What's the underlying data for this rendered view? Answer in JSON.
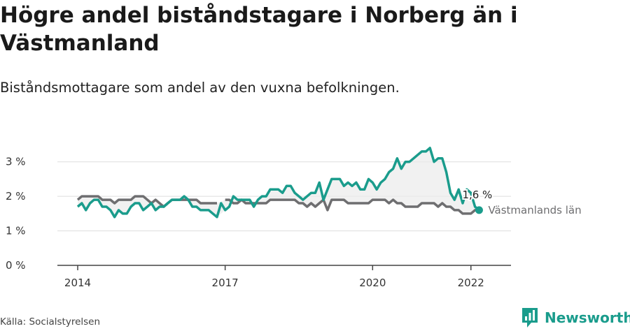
{
  "title": "Högre andel biståndstagare i Norberg än i Västmanland",
  "subtitle": "Biståndsmottagare som andel av den vuxna befolkningen.",
  "source": "Källa: Socialstyrelsen",
  "brand": {
    "name": "Newsworthy",
    "icon": "newsworthy-logo-icon"
  },
  "colors": {
    "primary": "#1a9c8c",
    "comparison": "#6e6e70",
    "fill": "#ebebeb",
    "grid": "#dddddd"
  },
  "chart_data": {
    "type": "line",
    "title": "Högre andel biståndstagare i Norberg än i Västmanland",
    "subtitle": "Biståndsmottagare som andel av den vuxna befolkningen.",
    "xlabel": "",
    "ylabel": "",
    "x_range": [
      "2014-01",
      "2022-06"
    ],
    "ylim": [
      0,
      3.5
    ],
    "x_ticks": [
      {
        "label": "2014",
        "value": "2014-01"
      },
      {
        "label": "2017",
        "value": "2017-01"
      },
      {
        "label": "2020",
        "value": "2020-01"
      },
      {
        "label": "2022",
        "value": "2022-01"
      }
    ],
    "y_ticks": [
      {
        "label": "0 %",
        "value": 0
      },
      {
        "label": "1 %",
        "value": 1
      },
      {
        "label": "2 %",
        "value": 2
      },
      {
        "label": "3 %",
        "value": 3
      }
    ],
    "grid": true,
    "series": [
      {
        "name": "",
        "role": "primary",
        "color": "#1a9c8c",
        "points": [
          [
            "2014-01",
            1.7
          ],
          [
            "2014-02",
            1.8
          ],
          [
            "2014-03",
            1.6
          ],
          [
            "2014-04",
            1.8
          ],
          [
            "2014-05",
            1.9
          ],
          [
            "2014-06",
            1.9
          ],
          [
            "2014-07",
            1.7
          ],
          [
            "2014-08",
            1.7
          ],
          [
            "2014-09",
            1.6
          ],
          [
            "2014-10",
            1.4
          ],
          [
            "2014-11",
            1.6
          ],
          [
            "2014-12",
            1.5
          ],
          [
            "2015-01",
            1.5
          ],
          [
            "2015-02",
            1.7
          ],
          [
            "2015-03",
            1.8
          ],
          [
            "2015-04",
            1.8
          ],
          [
            "2015-05",
            1.6
          ],
          [
            "2015-06",
            1.7
          ],
          [
            "2015-07",
            1.8
          ],
          [
            "2015-08",
            1.6
          ],
          [
            "2015-09",
            1.7
          ],
          [
            "2015-10",
            1.7
          ],
          [
            "2015-11",
            1.8
          ],
          [
            "2015-12",
            1.9
          ],
          [
            "2016-01",
            1.9
          ],
          [
            "2016-02",
            1.9
          ],
          [
            "2016-03",
            2.0
          ],
          [
            "2016-04",
            1.9
          ],
          [
            "2016-05",
            1.7
          ],
          [
            "2016-06",
            1.7
          ],
          [
            "2016-07",
            1.6
          ],
          [
            "2016-08",
            1.6
          ],
          [
            "2016-09",
            1.6
          ],
          [
            "2016-10",
            1.5
          ],
          [
            "2016-11",
            1.4
          ],
          [
            "2016-12",
            1.8
          ],
          [
            "2017-01",
            1.6
          ],
          [
            "2017-02",
            1.7
          ],
          [
            "2017-03",
            2.0
          ],
          [
            "2017-04",
            1.9
          ],
          [
            "2017-05",
            1.9
          ],
          [
            "2017-06",
            1.9
          ],
          [
            "2017-07",
            1.9
          ],
          [
            "2017-08",
            1.7
          ],
          [
            "2017-09",
            1.9
          ],
          [
            "2017-10",
            2.0
          ],
          [
            "2017-11",
            2.0
          ],
          [
            "2017-12",
            2.2
          ],
          [
            "2018-01",
            2.2
          ],
          [
            "2018-02",
            2.2
          ],
          [
            "2018-03",
            2.1
          ],
          [
            "2018-04",
            2.3
          ],
          [
            "2018-05",
            2.3
          ],
          [
            "2018-06",
            2.1
          ],
          [
            "2018-07",
            2.0
          ],
          [
            "2018-08",
            1.9
          ],
          [
            "2018-09",
            2.0
          ],
          [
            "2018-10",
            2.1
          ],
          [
            "2018-11",
            2.1
          ],
          [
            "2018-12",
            2.4
          ],
          [
            "2019-01",
            1.9
          ],
          [
            "2019-02",
            2.2
          ],
          [
            "2019-03",
            2.5
          ],
          [
            "2019-04",
            2.5
          ],
          [
            "2019-05",
            2.5
          ],
          [
            "2019-06",
            2.3
          ],
          [
            "2019-07",
            2.4
          ],
          [
            "2019-08",
            2.3
          ],
          [
            "2019-09",
            2.4
          ],
          [
            "2019-10",
            2.2
          ],
          [
            "2019-11",
            2.2
          ],
          [
            "2019-12",
            2.5
          ],
          [
            "2020-01",
            2.4
          ],
          [
            "2020-02",
            2.2
          ],
          [
            "2020-03",
            2.4
          ],
          [
            "2020-04",
            2.5
          ],
          [
            "2020-05",
            2.7
          ],
          [
            "2020-06",
            2.8
          ],
          [
            "2020-07",
            3.1
          ],
          [
            "2020-08",
            2.8
          ],
          [
            "2020-09",
            3.0
          ],
          [
            "2020-10",
            3.0
          ],
          [
            "2020-11",
            3.1
          ],
          [
            "2020-12",
            3.2
          ],
          [
            "2021-01",
            3.3
          ],
          [
            "2021-02",
            3.3
          ],
          [
            "2021-03",
            3.4
          ],
          [
            "2021-04",
            3.0
          ],
          [
            "2021-05",
            3.1
          ],
          [
            "2021-06",
            3.1
          ],
          [
            "2021-07",
            2.7
          ],
          [
            "2021-08",
            2.1
          ],
          [
            "2021-09",
            1.9
          ],
          [
            "2021-10",
            2.2
          ],
          [
            "2021-11",
            1.8
          ],
          [
            "2021-12",
            2.2
          ],
          [
            "2022-01",
            2.1
          ],
          [
            "2022-02",
            1.7
          ],
          [
            "2022-03",
            1.6
          ]
        ]
      },
      {
        "name": "Västmanlands län",
        "role": "comparison",
        "color": "#6e6e70",
        "points": [
          [
            "2014-01",
            1.9
          ],
          [
            "2014-02",
            2.0
          ],
          [
            "2014-03",
            2.0
          ],
          [
            "2014-04",
            2.0
          ],
          [
            "2014-05",
            2.0
          ],
          [
            "2014-06",
            2.0
          ],
          [
            "2014-07",
            1.9
          ],
          [
            "2014-08",
            1.9
          ],
          [
            "2014-09",
            1.9
          ],
          [
            "2014-10",
            1.8
          ],
          [
            "2014-11",
            1.9
          ],
          [
            "2014-12",
            1.9
          ],
          [
            "2015-01",
            1.9
          ],
          [
            "2015-02",
            1.9
          ],
          [
            "2015-03",
            2.0
          ],
          [
            "2015-04",
            2.0
          ],
          [
            "2015-05",
            2.0
          ],
          [
            "2015-06",
            1.9
          ],
          [
            "2015-07",
            1.8
          ],
          [
            "2015-08",
            1.9
          ],
          [
            "2015-09",
            1.8
          ],
          [
            "2015-10",
            1.7
          ],
          [
            "2015-11",
            1.8
          ],
          [
            "2015-12",
            1.9
          ],
          [
            "2016-01",
            1.9
          ],
          [
            "2016-02",
            1.9
          ],
          [
            "2016-03",
            1.9
          ],
          [
            "2016-04",
            1.9
          ],
          [
            "2016-05",
            1.9
          ],
          [
            "2016-06",
            1.9
          ],
          [
            "2016-07",
            1.8
          ],
          [
            "2016-08",
            1.8
          ],
          [
            "2016-09",
            1.8
          ],
          [
            "2016-10",
            1.8
          ],
          [
            "2016-11",
            1.8
          ],
          [
            "2016-12",
            null
          ],
          [
            "2017-01",
            1.9
          ],
          [
            "2017-02",
            1.9
          ],
          [
            "2017-03",
            1.8
          ],
          [
            "2017-04",
            1.8
          ],
          [
            "2017-05",
            1.9
          ],
          [
            "2017-06",
            1.8
          ],
          [
            "2017-07",
            1.8
          ],
          [
            "2017-08",
            1.8
          ],
          [
            "2017-09",
            1.8
          ],
          [
            "2017-10",
            1.8
          ],
          [
            "2017-11",
            1.8
          ],
          [
            "2017-12",
            1.9
          ],
          [
            "2018-01",
            1.9
          ],
          [
            "2018-02",
            1.9
          ],
          [
            "2018-03",
            1.9
          ],
          [
            "2018-04",
            1.9
          ],
          [
            "2018-05",
            1.9
          ],
          [
            "2018-06",
            1.9
          ],
          [
            "2018-07",
            1.8
          ],
          [
            "2018-08",
            1.8
          ],
          [
            "2018-09",
            1.7
          ],
          [
            "2018-10",
            1.8
          ],
          [
            "2018-11",
            1.7
          ],
          [
            "2018-12",
            1.8
          ],
          [
            "2019-01",
            1.9
          ],
          [
            "2019-02",
            1.6
          ],
          [
            "2019-03",
            1.9
          ],
          [
            "2019-04",
            1.9
          ],
          [
            "2019-05",
            1.9
          ],
          [
            "2019-06",
            1.9
          ],
          [
            "2019-07",
            1.8
          ],
          [
            "2019-08",
            1.8
          ],
          [
            "2019-09",
            1.8
          ],
          [
            "2019-10",
            1.8
          ],
          [
            "2019-11",
            1.8
          ],
          [
            "2019-12",
            1.8
          ],
          [
            "2020-01",
            1.9
          ],
          [
            "2020-02",
            1.9
          ],
          [
            "2020-03",
            1.9
          ],
          [
            "2020-04",
            1.9
          ],
          [
            "2020-05",
            1.8
          ],
          [
            "2020-06",
            1.9
          ],
          [
            "2020-07",
            1.8
          ],
          [
            "2020-08",
            1.8
          ],
          [
            "2020-09",
            1.7
          ],
          [
            "2020-10",
            1.7
          ],
          [
            "2020-11",
            1.7
          ],
          [
            "2020-12",
            1.7
          ],
          [
            "2021-01",
            1.8
          ],
          [
            "2021-02",
            1.8
          ],
          [
            "2021-03",
            1.8
          ],
          [
            "2021-04",
            1.8
          ],
          [
            "2021-05",
            1.7
          ],
          [
            "2021-06",
            1.8
          ],
          [
            "2021-07",
            1.7
          ],
          [
            "2021-08",
            1.7
          ],
          [
            "2021-09",
            1.6
          ],
          [
            "2021-10",
            1.6
          ],
          [
            "2021-11",
            1.5
          ],
          [
            "2021-12",
            1.5
          ],
          [
            "2022-01",
            1.5
          ],
          [
            "2022-02",
            1.6
          ],
          [
            "2022-03",
            1.6
          ]
        ]
      }
    ],
    "annotations": [
      {
        "series": "primary",
        "at": "2022-03",
        "value": 1.6,
        "label": "1,6 %"
      },
      {
        "series": "comparison",
        "at": "2022-03",
        "value": 1.6,
        "label": "Västmanlands län"
      }
    ]
  }
}
